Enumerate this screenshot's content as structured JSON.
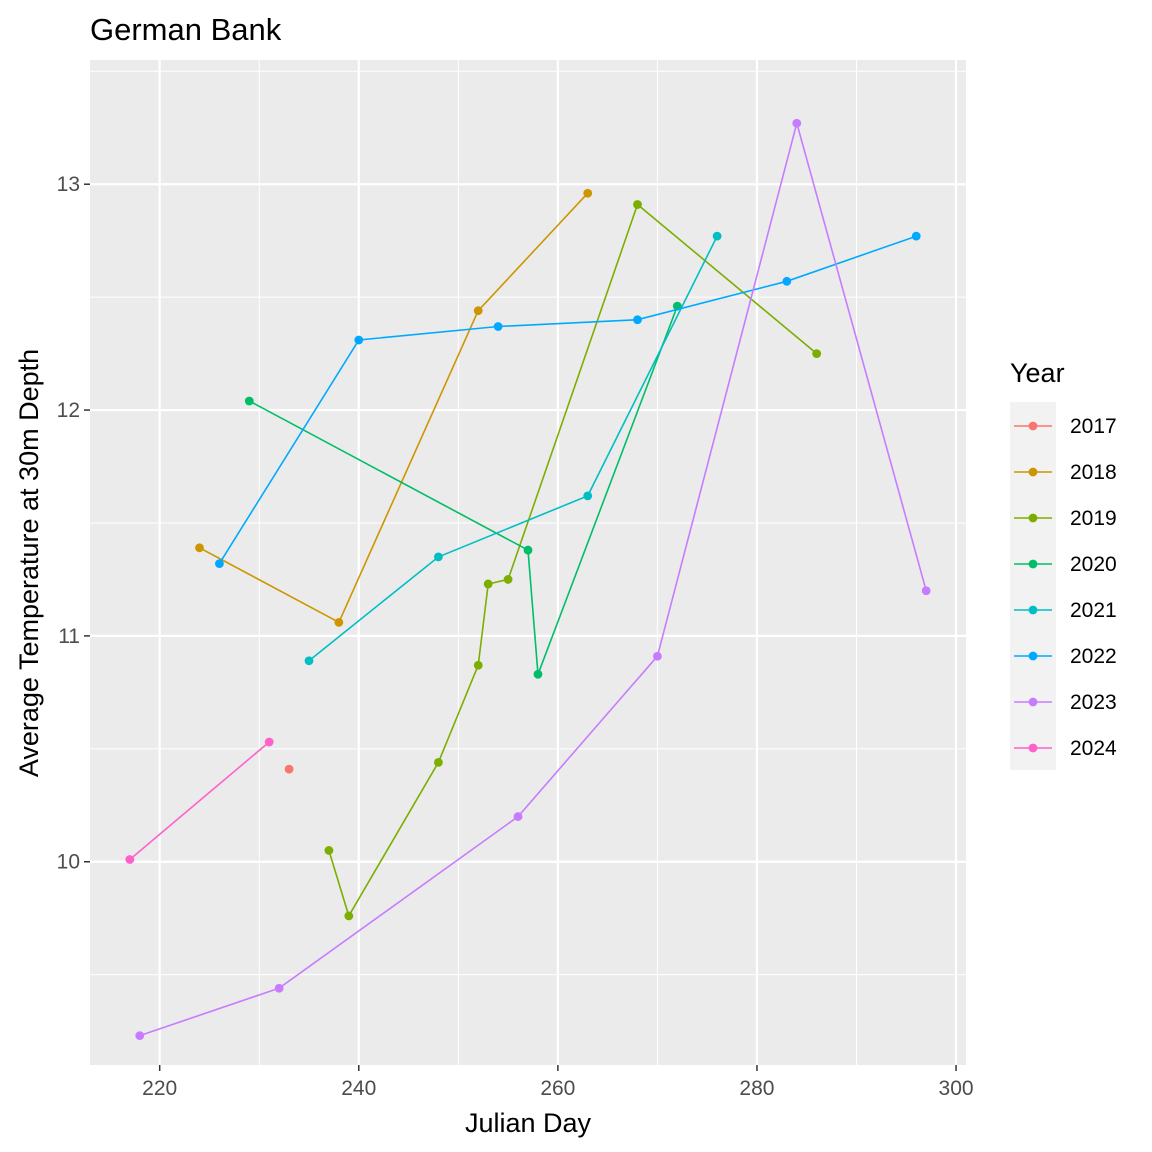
{
  "chart_data": {
    "type": "line",
    "title": "German Bank",
    "xlabel": "Julian Day",
    "ylabel": "Average Temperature at 30m Depth",
    "xlim": [
      213,
      301
    ],
    "ylim": [
      9.1,
      13.55
    ],
    "x_ticks": [
      220,
      240,
      260,
      280,
      300
    ],
    "y_ticks": [
      10,
      11,
      12,
      13
    ],
    "grid": true,
    "legend": {
      "title": "Year",
      "position": "right"
    },
    "series": [
      {
        "name": "2017",
        "color": "#F8766D",
        "points": [
          [
            233,
            10.41
          ]
        ]
      },
      {
        "name": "2018",
        "color": "#CD9600",
        "points": [
          [
            224,
            11.39
          ],
          [
            238,
            11.06
          ],
          [
            252,
            12.44
          ],
          [
            263,
            12.96
          ]
        ]
      },
      {
        "name": "2019",
        "color": "#7CAE00",
        "points": [
          [
            237,
            10.05
          ],
          [
            239,
            9.76
          ],
          [
            248,
            10.44
          ],
          [
            252,
            10.87
          ],
          [
            253,
            11.23
          ],
          [
            255,
            11.25
          ],
          [
            268,
            12.91
          ],
          [
            286,
            12.25
          ]
        ]
      },
      {
        "name": "2020",
        "color": "#00BE67",
        "points": [
          [
            229,
            12.04
          ],
          [
            257,
            11.38
          ],
          [
            258,
            10.83
          ],
          [
            272,
            12.46
          ]
        ]
      },
      {
        "name": "2021",
        "color": "#00BFC4",
        "points": [
          [
            235,
            10.89
          ],
          [
            248,
            11.35
          ],
          [
            263,
            11.62
          ],
          [
            276,
            12.77
          ]
        ]
      },
      {
        "name": "2022",
        "color": "#00A9FF",
        "points": [
          [
            226,
            11.32
          ],
          [
            240,
            12.31
          ],
          [
            254,
            12.37
          ],
          [
            268,
            12.4
          ],
          [
            283,
            12.57
          ],
          [
            296,
            12.77
          ]
        ]
      },
      {
        "name": "2023",
        "color": "#C77CFF",
        "points": [
          [
            218,
            9.23
          ],
          [
            232,
            9.44
          ],
          [
            256,
            10.2
          ],
          [
            270,
            10.91
          ],
          [
            284,
            13.27
          ],
          [
            297,
            11.2
          ]
        ]
      },
      {
        "name": "2024",
        "color": "#FF61CC",
        "points": [
          [
            217,
            10.01
          ],
          [
            231,
            10.53
          ]
        ]
      }
    ]
  }
}
